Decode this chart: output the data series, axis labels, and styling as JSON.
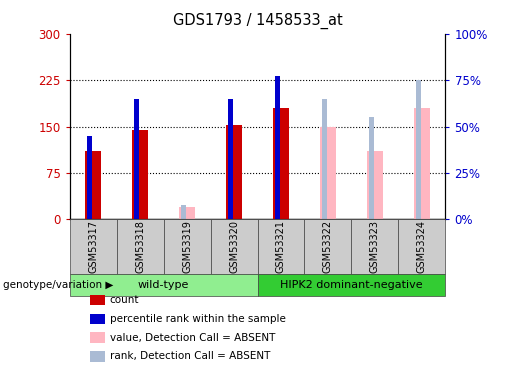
{
  "title": "GDS1793 / 1458533_at",
  "samples": [
    "GSM53317",
    "GSM53318",
    "GSM53319",
    "GSM53320",
    "GSM53321",
    "GSM53322",
    "GSM53323",
    "GSM53324"
  ],
  "count_values": [
    110,
    145,
    0,
    152,
    180,
    0,
    0,
    0
  ],
  "percentile_rank": [
    45,
    65,
    0,
    65,
    77,
    0,
    0,
    0
  ],
  "absent_value": [
    0,
    0,
    20,
    0,
    0,
    150,
    110,
    180
  ],
  "absent_rank": [
    0,
    0,
    8,
    0,
    0,
    65,
    55,
    75
  ],
  "groups": [
    {
      "label": "wild-type",
      "samples": [
        0,
        1,
        2,
        3
      ],
      "color": "#90EE90"
    },
    {
      "label": "HIPK2 dominant-negative",
      "samples": [
        4,
        5,
        6,
        7
      ],
      "color": "#33CC33"
    }
  ],
  "ylim_left": [
    0,
    300
  ],
  "ylim_right": [
    0,
    100
  ],
  "yticks_left": [
    0,
    75,
    150,
    225,
    300
  ],
  "ytick_labels_left": [
    "0",
    "75",
    "150",
    "225",
    "300"
  ],
  "yticks_right": [
    0,
    25,
    50,
    75,
    100
  ],
  "ytick_labels_right": [
    "0%",
    "25%",
    "50%",
    "75%",
    "100%"
  ],
  "count_color": "#CC0000",
  "rank_color": "#0000CC",
  "absent_value_color": "#FFB6C1",
  "absent_rank_color": "#AABBD4",
  "legend_items": [
    {
      "label": "count",
      "color": "#CC0000"
    },
    {
      "label": "percentile rank within the sample",
      "color": "#0000CC"
    },
    {
      "label": "value, Detection Call = ABSENT",
      "color": "#FFB6C1"
    },
    {
      "label": "rank, Detection Call = ABSENT",
      "color": "#AABBD4"
    }
  ]
}
